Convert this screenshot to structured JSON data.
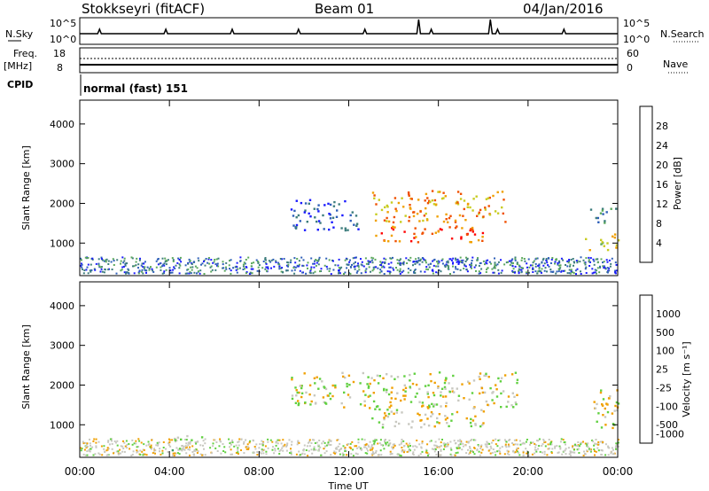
{
  "header": {
    "station": "Stokkseyri (fitACF)",
    "beam": "Beam 01",
    "date": "04/Jan/2016"
  },
  "status_panels": {
    "nsky_label": "N.Sky",
    "nsky_ticks": [
      "10^5",
      "10^0"
    ],
    "nsearch_label": "N.Search",
    "nsearch_ticks": [
      "10^5",
      "10^0"
    ],
    "freq_label": "Freq.",
    "freq_unit": "[MHz]",
    "freq_ticks": [
      "18",
      "8"
    ],
    "nave_label": "Nave",
    "nave_ticks": [
      "60",
      "0"
    ],
    "cpid_label": "CPID",
    "cpid_value": "normal (fast) 151"
  },
  "chart_data": [
    {
      "type": "heatmap",
      "name": "power",
      "ylabel": "Slant Range [km]",
      "xlabel": "",
      "x_range_hours": [
        0,
        24
      ],
      "ylim": [
        180,
        4600
      ],
      "yticks": [
        "1000",
        "2000",
        "3000",
        "4000"
      ],
      "colorbar": {
        "label": "Power [dB]",
        "ticks": [
          "4",
          "8",
          "12",
          "16",
          "20",
          "24",
          "28"
        ],
        "colors": [
          "#1a1aff",
          "#2e5fb8",
          "#3d7d7d",
          "#5ca95c",
          "#c8cc20",
          "#f0a000",
          "#f05000",
          "#ff0000"
        ]
      },
      "regions": [
        {
          "t0": 13.0,
          "t1": 19.0,
          "r0": 1500,
          "r1": 2300,
          "level": 5
        },
        {
          "t0": 9.4,
          "t1": 12.5,
          "r0": 1300,
          "r1": 2100,
          "level": 1
        },
        {
          "t0": 13.0,
          "t1": 18.0,
          "r0": 1000,
          "r1": 1400,
          "level": 6
        },
        {
          "t0": 22.7,
          "t1": 24.0,
          "r0": 1450,
          "r1": 1850,
          "level": 2
        },
        {
          "t0": 22.5,
          "t1": 24.0,
          "r0": 800,
          "r1": 1200,
          "level": 4
        }
      ]
    },
    {
      "type": "heatmap",
      "name": "velocity",
      "ylabel": "Slant Range [km]",
      "xlabel": "Time UT",
      "x_range_hours": [
        0,
        24
      ],
      "ylim": [
        180,
        4600
      ],
      "yticks": [
        "1000",
        "2000",
        "3000",
        "4000"
      ],
      "xticks": [
        "00:00",
        "04:00",
        "08:00",
        "12:00",
        "16:00",
        "20:00",
        "00:00"
      ],
      "colorbar": {
        "label": "Velocity [m s⁻¹]",
        "ticks": [
          "1000",
          "500",
          "100",
          "25",
          "-25",
          "-100",
          "-500",
          "-1000"
        ],
        "colors": [
          "#2020c0",
          "#3a6ab0",
          "#3d9a60",
          "#60d040",
          "#c8c8c0",
          "#f0a000",
          "#ff6000",
          "#ff0000"
        ]
      },
      "regions": [
        {
          "t0": 9.4,
          "t1": 19.5,
          "r0": 1400,
          "r1": 2300,
          "level": 4
        },
        {
          "t0": 13.0,
          "t1": 18.0,
          "r0": 900,
          "r1": 1400,
          "level": 4
        },
        {
          "t0": 22.7,
          "t1": 24.0,
          "r0": 900,
          "r1": 1900,
          "level": 4
        },
        {
          "t0": 4.0,
          "t1": 5.5,
          "r0": 300,
          "r1": 700,
          "level": 3
        }
      ]
    }
  ],
  "colors": {
    "frame": "#000000",
    "background": "#ffffff",
    "ground_scatter": "#c8c8c0"
  }
}
